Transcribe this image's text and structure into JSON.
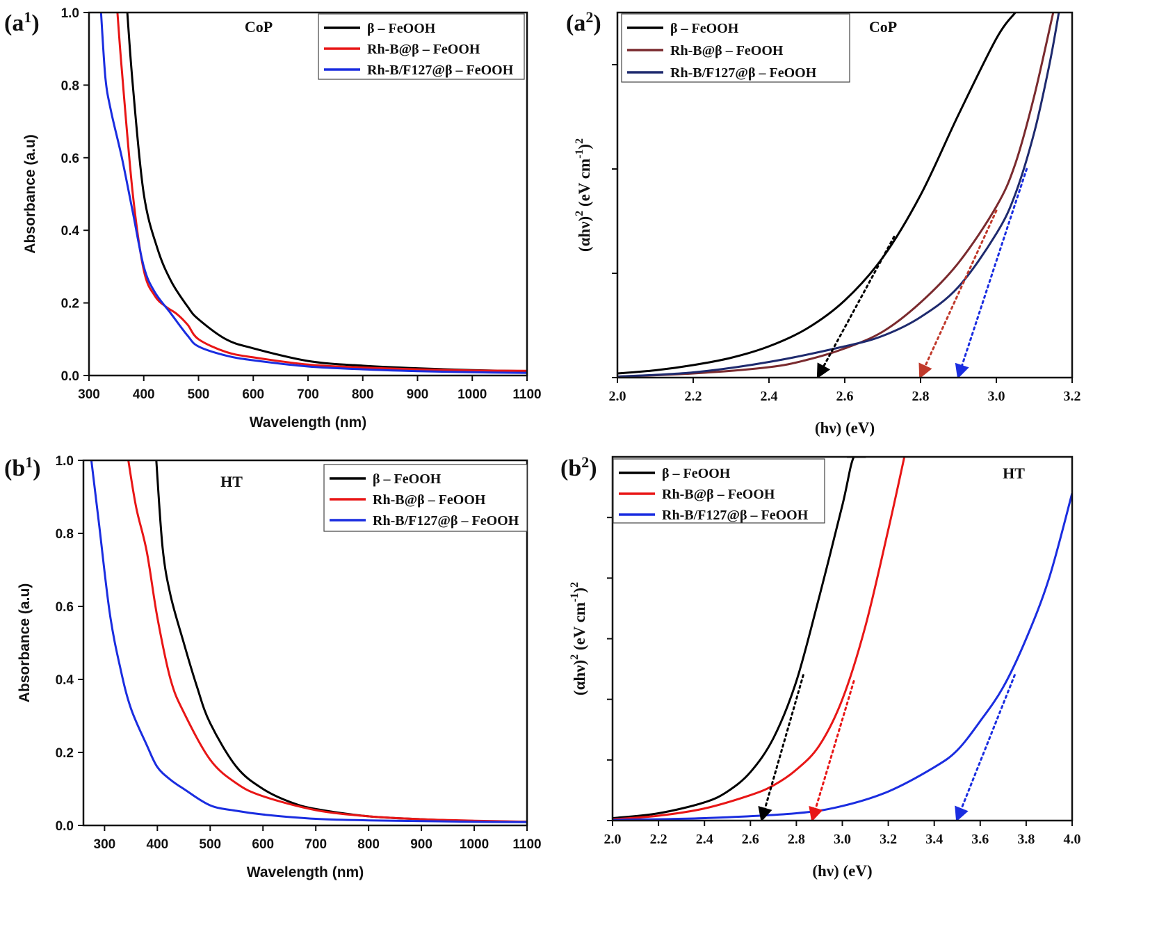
{
  "chart_data": [
    {
      "id": "a1",
      "type": "line",
      "panel_label": {
        "main": "(a",
        "sup": "1",
        "close": ")"
      },
      "annotation": "CoP",
      "xlabel": "Wavelength (nm)",
      "ylabel": "Absorbance (a.u)",
      "xlim": [
        300,
        1100
      ],
      "ylim": [
        0,
        1.0
      ],
      "xticks": [
        300,
        400,
        500,
        600,
        700,
        800,
        900,
        1000,
        1100
      ],
      "xtick_labels": [
        "300",
        "400",
        "500",
        "600",
        "700",
        "800",
        "900",
        "1000",
        "1100"
      ],
      "yticks": [
        0,
        0.2,
        0.4,
        0.6,
        0.8,
        1.0
      ],
      "ytick_labels": [
        "0.0",
        "0.2",
        "0.4",
        "0.6",
        "0.8",
        "1.0"
      ],
      "legend": "top-right",
      "series": [
        {
          "name": "β – FeOOH",
          "color": "#000000",
          "x": [
            370,
            380,
            400,
            425,
            450,
            480,
            500,
            550,
            600,
            700,
            800,
            900,
            1000,
            1100
          ],
          "y": [
            1.0,
            0.8,
            0.5,
            0.35,
            0.26,
            0.19,
            0.155,
            0.1,
            0.075,
            0.04,
            0.027,
            0.02,
            0.015,
            0.012
          ]
        },
        {
          "name": "Rh-B@β – FeOOH",
          "color": "#e81616",
          "x": [
            352,
            360,
            380,
            400,
            420,
            440,
            460,
            480,
            500,
            550,
            600,
            700,
            800,
            900,
            1000,
            1100
          ],
          "y": [
            1.0,
            0.84,
            0.5,
            0.29,
            0.22,
            0.19,
            0.17,
            0.14,
            0.1,
            0.065,
            0.05,
            0.03,
            0.022,
            0.017,
            0.014,
            0.013
          ]
        },
        {
          "name": "Rh-B/F127@β – FeOOH",
          "color": "#1a2de0",
          "x": [
            322,
            330,
            340,
            360,
            380,
            400,
            420,
            450,
            480,
            500,
            550,
            600,
            700,
            800,
            900,
            1000,
            1100
          ],
          "y": [
            1.0,
            0.82,
            0.73,
            0.6,
            0.45,
            0.3,
            0.23,
            0.17,
            0.11,
            0.08,
            0.055,
            0.042,
            0.025,
            0.017,
            0.012,
            0.009,
            0.007
          ]
        }
      ]
    },
    {
      "id": "a2",
      "type": "line",
      "panel_label": {
        "main": "(a",
        "sup": "2",
        "close": ")"
      },
      "annotation": "CoP",
      "xlabel_parts": [
        "(h",
        "ν",
        ") (eV)"
      ],
      "ylabel_parts": [
        "(αhν)",
        "2",
        " (eV cm",
        "-1",
        ")",
        "2"
      ],
      "xlim": [
        2.0,
        3.2
      ],
      "ylim": [
        0,
        3.5
      ],
      "xticks": [
        2.0,
        2.2,
        2.4,
        2.6,
        2.8,
        3.0,
        3.2
      ],
      "xtick_labels": [
        "2.0",
        "2.2",
        "2.4",
        "2.6",
        "2.8",
        "3.0",
        "3.2"
      ],
      "yticks": [
        0,
        1,
        2,
        3
      ],
      "ytick_labels": [],
      "legend": "top-left",
      "series": [
        {
          "name": "β – FeOOH",
          "color": "#000000",
          "x": [
            2.0,
            2.1,
            2.2,
            2.3,
            2.4,
            2.5,
            2.6,
            2.7,
            2.8,
            2.9,
            3.0,
            3.05
          ],
          "y": [
            0.04,
            0.07,
            0.12,
            0.19,
            0.3,
            0.47,
            0.74,
            1.15,
            1.75,
            2.52,
            3.25,
            3.5
          ]
        },
        {
          "name": "Rh-B@β – FeOOH",
          "color": "#7a2a2e",
          "x": [
            2.0,
            2.2,
            2.4,
            2.5,
            2.6,
            2.7,
            2.8,
            2.9,
            3.0,
            3.05,
            3.1,
            3.15
          ],
          "y": [
            0.01,
            0.04,
            0.1,
            0.17,
            0.28,
            0.44,
            0.72,
            1.1,
            1.64,
            2.05,
            2.7,
            3.5
          ]
        },
        {
          "name": "Rh-B/F127@β – FeOOH",
          "color": "#1e2a6e",
          "x": [
            2.0,
            2.2,
            2.4,
            2.6,
            2.7,
            2.8,
            2.9,
            3.0,
            3.05,
            3.1,
            3.14,
            3.165
          ],
          "y": [
            0.01,
            0.05,
            0.15,
            0.3,
            0.4,
            0.58,
            0.87,
            1.38,
            1.76,
            2.35,
            3.0,
            3.5
          ]
        }
      ],
      "tangents": [
        {
          "color": "#000000",
          "x": [
            2.53,
            2.73
          ],
          "y": [
            0.0,
            1.35
          ]
        },
        {
          "color": "#c0392b",
          "x": [
            2.8,
            3.0
          ],
          "y": [
            0.0,
            1.6
          ]
        },
        {
          "color": "#1a2de0",
          "x": [
            2.9,
            3.08
          ],
          "y": [
            0.0,
            2.0
          ]
        }
      ]
    },
    {
      "id": "b1",
      "type": "line",
      "panel_label": {
        "main": "(b",
        "sup": "1",
        "close": ")"
      },
      "annotation": "HT",
      "xlabel": "Wavelength (nm)",
      "ylabel": "Absorbance (a.u)",
      "xlim": [
        260,
        1100
      ],
      "ylim": [
        0,
        1.0
      ],
      "xticks": [
        300,
        400,
        500,
        600,
        700,
        800,
        900,
        1000,
        1100
      ],
      "xtick_labels": [
        "300",
        "400",
        "500",
        "600",
        "700",
        "800",
        "900",
        "1000",
        "1100"
      ],
      "yticks": [
        0,
        0.2,
        0.4,
        0.6,
        0.8,
        1.0
      ],
      "ytick_labels": [
        "0.0",
        "0.2",
        "0.4",
        "0.6",
        "0.8",
        "1.0"
      ],
      "legend": "top-right",
      "series": [
        {
          "name": "β – FeOOH",
          "color": "#000000",
          "x": [
            398,
            410,
            425,
            450,
            475,
            500,
            550,
            600,
            650,
            700,
            800,
            900,
            1000,
            1100
          ],
          "y": [
            1.0,
            0.76,
            0.63,
            0.5,
            0.38,
            0.28,
            0.16,
            0.1,
            0.065,
            0.045,
            0.025,
            0.017,
            0.012,
            0.01
          ]
        },
        {
          "name": "Rh-B@β – FeOOH",
          "color": "#e81616",
          "x": [
            345,
            360,
            380,
            400,
            425,
            450,
            500,
            550,
            600,
            700,
            800,
            900,
            1000,
            1100
          ],
          "y": [
            1.0,
            0.87,
            0.75,
            0.57,
            0.4,
            0.31,
            0.18,
            0.115,
            0.08,
            0.042,
            0.025,
            0.017,
            0.013,
            0.01
          ]
        },
        {
          "name": "Rh-B/F127@β – FeOOH",
          "color": "#1a2de0",
          "x": [
            275,
            290,
            310,
            330,
            350,
            380,
            400,
            425,
            450,
            500,
            550,
            600,
            700,
            800,
            900,
            1000,
            1100
          ],
          "y": [
            1.0,
            0.82,
            0.58,
            0.43,
            0.32,
            0.22,
            0.16,
            0.125,
            0.1,
            0.055,
            0.04,
            0.03,
            0.018,
            0.014,
            0.012,
            0.01,
            0.009
          ]
        }
      ]
    },
    {
      "id": "b2",
      "type": "line",
      "panel_label": {
        "main": "(b",
        "sup": "2",
        "close": ")"
      },
      "annotation": "HT",
      "xlabel_parts": [
        "(h",
        "ν",
        ") (eV)"
      ],
      "ylabel_parts": [
        "(αhν)",
        "2",
        " (eV cm",
        "-1",
        ")",
        "2"
      ],
      "xlim": [
        2.0,
        4.0
      ],
      "ylim": [
        0,
        3.0
      ],
      "xticks": [
        2.0,
        2.2,
        2.4,
        2.6,
        2.8,
        3.0,
        3.2,
        3.4,
        3.6,
        3.8,
        4.0
      ],
      "xtick_labels": [
        "2.0",
        "2.2",
        "2.4",
        "2.6",
        "2.8",
        "3.0",
        "3.2",
        "3.4",
        "3.6",
        "3.8",
        "4.0"
      ],
      "yticks": [
        0,
        0.5,
        1.0,
        1.5,
        2.0,
        2.5
      ],
      "ytick_labels": [],
      "legend": "top-left",
      "series": [
        {
          "name": "β – FeOOH",
          "color": "#000000",
          "x": [
            2.0,
            2.2,
            2.4,
            2.5,
            2.6,
            2.7,
            2.8,
            2.9,
            3.0,
            3.05,
            3.1,
            3.02
          ],
          "y": [
            0.02,
            0.06,
            0.15,
            0.24,
            0.4,
            0.68,
            1.15,
            1.85,
            2.6,
            3.0,
            3.0,
            3.0
          ]
        },
        {
          "name": "Rh-B@β – FeOOH",
          "color": "#e81616",
          "x": [
            2.0,
            2.2,
            2.4,
            2.6,
            2.7,
            2.8,
            2.9,
            3.0,
            3.1,
            3.2,
            3.27
          ],
          "y": [
            0.01,
            0.04,
            0.1,
            0.21,
            0.29,
            0.42,
            0.62,
            1.0,
            1.6,
            2.4,
            3.0
          ]
        },
        {
          "name": "Rh-B/F127@β – FeOOH",
          "color": "#1a2de0",
          "x": [
            2.0,
            2.4,
            2.8,
            3.0,
            3.2,
            3.4,
            3.5,
            3.6,
            3.7,
            3.8,
            3.9,
            4.0
          ],
          "y": [
            0.005,
            0.02,
            0.06,
            0.12,
            0.24,
            0.44,
            0.58,
            0.82,
            1.1,
            1.5,
            2.0,
            2.7
          ]
        }
      ],
      "tangents": [
        {
          "color": "#000000",
          "x": [
            2.65,
            2.83
          ],
          "y": [
            0.0,
            1.2
          ]
        },
        {
          "color": "#e81616",
          "x": [
            2.87,
            3.05
          ],
          "y": [
            0.0,
            1.15
          ]
        },
        {
          "color": "#1a2de0",
          "x": [
            3.5,
            3.75
          ],
          "y": [
            0.0,
            1.2
          ]
        }
      ]
    }
  ]
}
